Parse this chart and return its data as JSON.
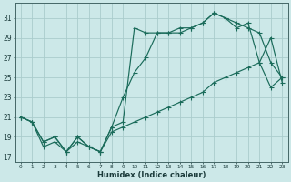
{
  "xlabel": "Humidex (Indice chaleur)",
  "background_color": "#cce8e8",
  "grid_color": "#aacccc",
  "line_color": "#1a6b5a",
  "x_ticks": [
    0,
    1,
    2,
    3,
    4,
    5,
    6,
    7,
    8,
    9,
    10,
    11,
    12,
    13,
    14,
    15,
    16,
    17,
    18,
    19,
    20,
    21,
    22,
    23
  ],
  "y_ticks": [
    17,
    19,
    21,
    23,
    25,
    27,
    29,
    31
  ],
  "ylim": [
    16.5,
    32.5
  ],
  "xlim": [
    -0.5,
    23.5
  ],
  "line1_x": [
    0,
    1,
    2,
    3,
    4,
    5,
    6,
    7,
    8,
    9,
    10,
    11,
    12,
    13,
    14,
    15,
    16,
    17,
    18,
    19,
    20,
    21,
    22,
    23
  ],
  "line1_y": [
    21.0,
    20.5,
    18.5,
    19.0,
    17.5,
    19.0,
    18.0,
    17.5,
    20.0,
    20.5,
    30.0,
    29.5,
    29.5,
    29.5,
    29.5,
    30.0,
    30.5,
    31.5,
    31.0,
    30.0,
    30.5,
    26.5,
    29.0,
    24.5
  ],
  "line2_x": [
    0,
    1,
    2,
    3,
    4,
    5,
    6,
    7,
    8,
    9,
    10,
    11,
    12,
    13,
    14,
    15,
    16,
    17,
    18,
    19,
    20,
    21,
    22,
    23
  ],
  "line2_y": [
    21.0,
    20.5,
    18.5,
    19.0,
    17.5,
    19.0,
    18.0,
    17.5,
    20.0,
    23.0,
    25.5,
    27.0,
    29.5,
    29.5,
    30.0,
    30.0,
    30.5,
    31.5,
    31.0,
    30.5,
    30.0,
    29.5,
    26.5,
    25.0
  ],
  "line3_x": [
    0,
    1,
    2,
    3,
    4,
    5,
    6,
    7,
    8,
    9,
    10,
    11,
    12,
    13,
    14,
    15,
    16,
    17,
    18,
    19,
    20,
    21,
    22,
    23
  ],
  "line3_y": [
    21.0,
    20.5,
    18.0,
    18.5,
    17.5,
    18.5,
    18.0,
    17.5,
    19.5,
    20.0,
    20.5,
    21.0,
    21.5,
    22.0,
    22.5,
    23.0,
    23.5,
    24.5,
    25.0,
    25.5,
    26.0,
    26.5,
    24.0,
    25.0
  ]
}
